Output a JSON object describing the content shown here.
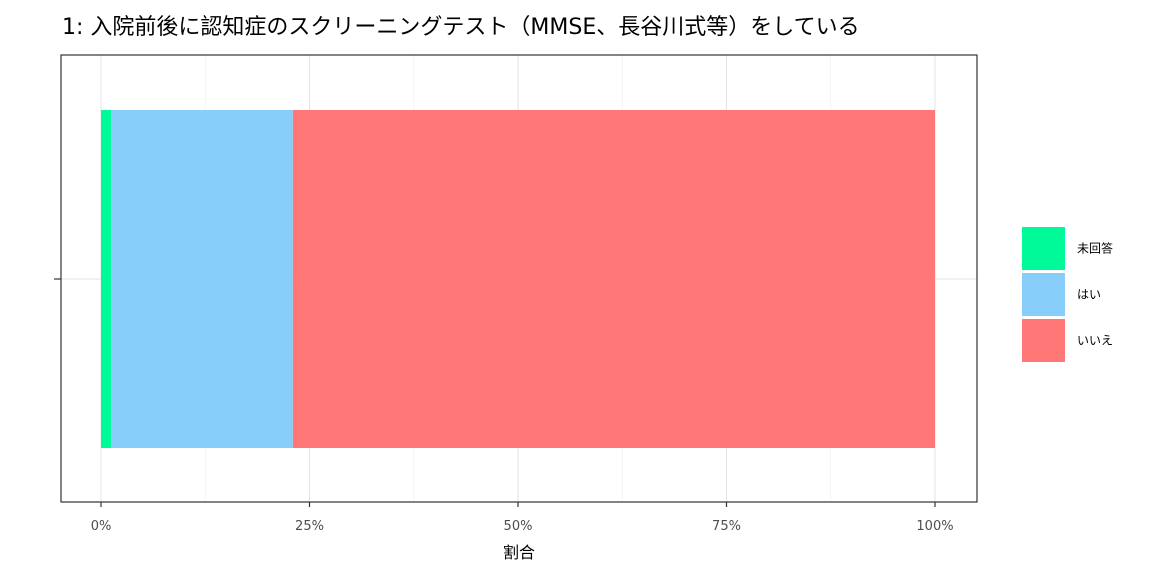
{
  "chart_data": {
    "type": "bar",
    "orientation": "horizontal",
    "stacked": true,
    "title": "1: 入院前後に認知症のスクリーニングテスト（MMSE、長谷川式等）をしている",
    "xlabel": "割合",
    "ylabel": "",
    "xlim": [
      0,
      1
    ],
    "x_ticks": [
      0,
      0.25,
      0.5,
      0.75,
      1.0
    ],
    "x_tick_labels": [
      "0%",
      "25%",
      "50%",
      "75%",
      "100%"
    ],
    "grid": true,
    "legend_position": "right",
    "series": [
      {
        "name": "未回答",
        "value": 0.012,
        "color": "#00FA9A"
      },
      {
        "name": "はい",
        "value": 0.218,
        "color": "#87CEFA"
      },
      {
        "name": "いいえ",
        "value": 0.77,
        "color": "#FF7777"
      }
    ],
    "legend_order": [
      "未回答",
      "はい",
      "いいえ"
    ]
  }
}
